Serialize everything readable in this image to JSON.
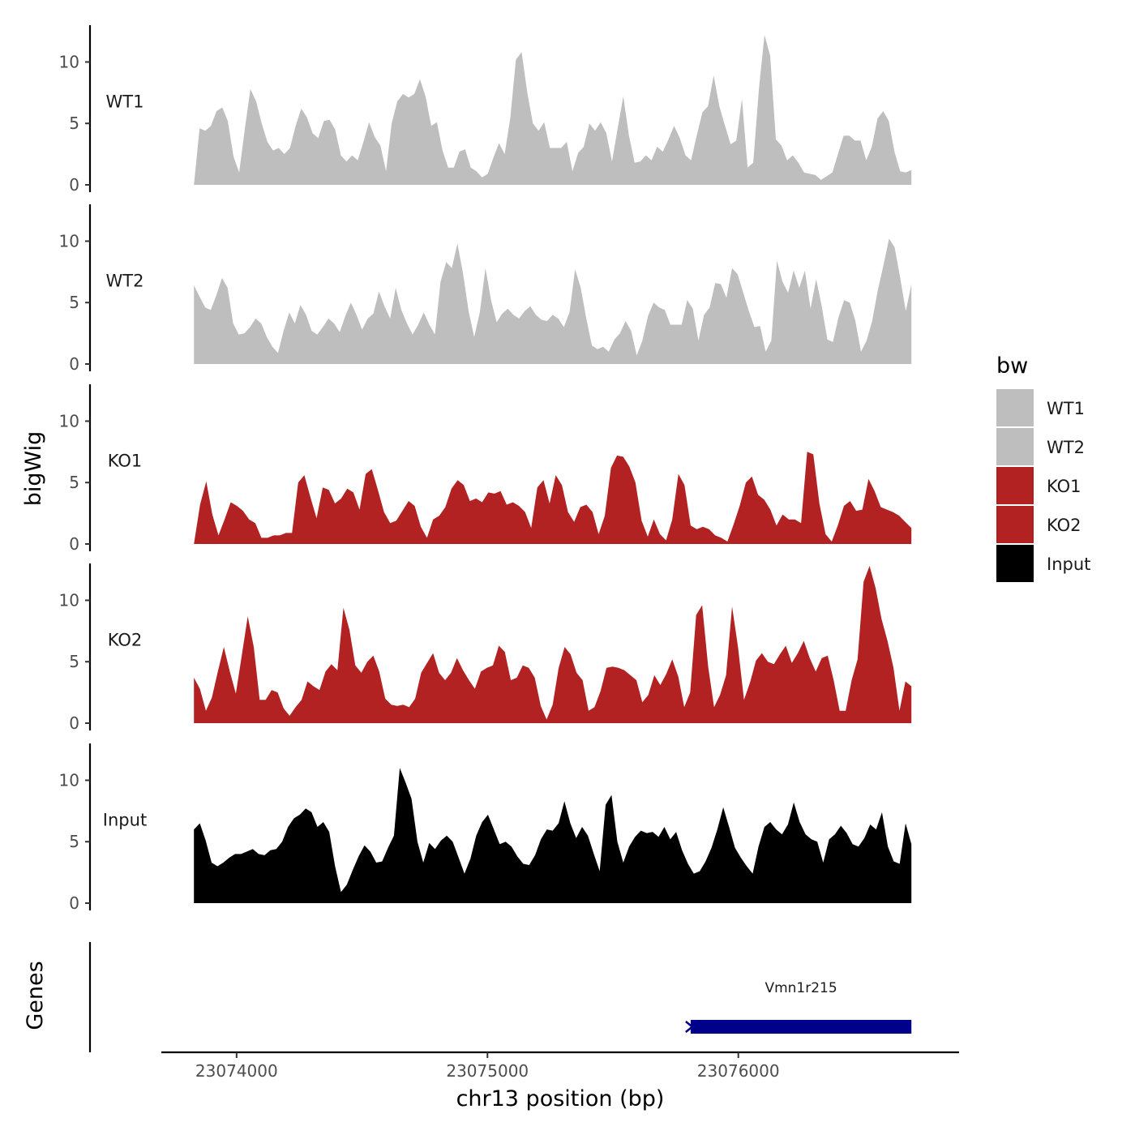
{
  "chart_data": {
    "type": "area",
    "ylabel": "bigWig",
    "xlabel": "chr13 position (bp)",
    "xlim": [
      23073700,
      23076880
    ],
    "x_range_data": [
      23073830,
      23076690
    ],
    "ylim": [
      0,
      13
    ],
    "yticks": [
      0,
      5,
      10
    ],
    "xticks": [
      23074000,
      23075000,
      23076000
    ],
    "xtick_labels": [
      "23074000",
      "23075000",
      "23076000"
    ],
    "legend": {
      "title": "bw",
      "position": "right",
      "entries": [
        {
          "label": "WT1",
          "color": "#bebebe"
        },
        {
          "label": "WT2",
          "color": "#bebebe"
        },
        {
          "label": "KO1",
          "color": "#b22222"
        },
        {
          "label": "KO2",
          "color": "#b22222"
        },
        {
          "label": "Input",
          "color": "#000000"
        }
      ]
    },
    "series": [
      {
        "name": "WT1",
        "color": "#bebebe",
        "values": [
          0,
          4.6,
          4.4,
          4.8,
          6.0,
          6.3,
          5.2,
          2.3,
          1.0,
          4.5,
          7.8,
          6.8,
          5.0,
          3.5,
          2.8,
          3.0,
          2.5,
          3.0,
          4.8,
          6.2,
          5.5,
          4.2,
          3.8,
          5.2,
          5.3,
          4.5,
          2.4,
          1.9,
          2.4,
          2.0,
          3.5,
          5.1,
          3.9,
          3.2,
          1.1,
          5.0,
          6.8,
          7.4,
          7.1,
          7.4,
          8.6,
          7.2,
          4.8,
          5.1,
          2.8,
          1.4,
          1.4,
          2.7,
          2.9,
          1.4,
          1.1,
          0.6,
          0.9,
          2.2,
          3.4,
          2.5,
          5.5,
          10.2,
          10.8,
          7.5,
          5.0,
          4.4,
          5.1,
          3.0,
          3.0,
          3.0,
          3.5,
          1.1,
          2.6,
          3.1,
          5.0,
          4.4,
          5.1,
          4.2,
          1.9,
          4.6,
          7.2,
          4.0,
          1.8,
          1.9,
          2.4,
          2.0,
          3.1,
          2.7,
          3.7,
          4.8,
          3.8,
          2.4,
          2.0,
          4.0,
          5.9,
          6.4,
          8.9,
          6.4,
          4.8,
          3.3,
          3.6,
          7.0,
          1.4,
          1.8,
          7.8,
          12.2,
          10.5,
          3.7,
          3.2,
          2.0,
          2.4,
          1.8,
          1.0,
          0.9,
          0.8,
          0.4,
          0.7,
          1.0,
          2.5,
          4.0,
          4.0,
          3.6,
          3.6,
          2.0,
          3.1,
          5.4,
          6.0,
          5.2,
          2.7,
          1.1,
          1.0,
          1.2
        ]
      },
      {
        "name": "WT2",
        "color": "#bebebe",
        "values": [
          6.4,
          5.5,
          4.6,
          4.4,
          5.6,
          7.0,
          6.2,
          3.3,
          2.4,
          2.5,
          3.0,
          3.7,
          3.3,
          2.2,
          1.4,
          0.9,
          2.7,
          4.2,
          3.3,
          4.8,
          4.0,
          2.7,
          2.4,
          3.0,
          3.7,
          3.3,
          2.6,
          3.9,
          5.0,
          4.0,
          2.8,
          3.7,
          4.1,
          5.9,
          4.7,
          3.7,
          6.2,
          4.4,
          3.3,
          2.4,
          3.2,
          4.2,
          3.2,
          2.4,
          6.7,
          8.3,
          7.8,
          9.8,
          7.4,
          4.3,
          2.2,
          4.2,
          7.8,
          5.2,
          3.4,
          4.1,
          4.5,
          4.0,
          3.7,
          4.3,
          4.7,
          4.0,
          3.6,
          3.5,
          4.0,
          3.7,
          3.0,
          4.2,
          7.7,
          6.2,
          3.7,
          1.5,
          1.2,
          1.4,
          1.0,
          2.0,
          2.5,
          3.5,
          2.7,
          0.7,
          1.9,
          3.9,
          5.0,
          4.6,
          4.4,
          3.2,
          3.2,
          3.2,
          5.2,
          4.5,
          1.9,
          4.0,
          4.6,
          6.6,
          6.5,
          5.4,
          7.8,
          7.3,
          5.8,
          4.3,
          3.0,
          3.1,
          1.0,
          1.9,
          8.4,
          6.7,
          5.8,
          7.6,
          6.2,
          7.6,
          4.5,
          6.9,
          4.7,
          2.0,
          1.8,
          3.8,
          5.2,
          5.0,
          3.5,
          1.0,
          1.9,
          3.5,
          6.0,
          8.0,
          10.2,
          9.5,
          7.0,
          4.3,
          6.5
        ]
      },
      {
        "name": "KO1",
        "color": "#b22222",
        "values": [
          0,
          3.2,
          5.1,
          2.4,
          0.7,
          2.0,
          3.4,
          3.1,
          2.7,
          2.0,
          1.7,
          0.5,
          0.5,
          0.7,
          0.7,
          0.9,
          0.9,
          5.0,
          5.6,
          3.8,
          2.1,
          4.6,
          4.4,
          3.3,
          3.7,
          4.5,
          4.2,
          2.8,
          5.7,
          6.1,
          4.4,
          2.6,
          1.7,
          1.9,
          2.7,
          3.5,
          3.1,
          1.4,
          0.5,
          2.0,
          2.3,
          3.0,
          4.5,
          5.2,
          4.8,
          3.5,
          3.7,
          3.4,
          4.2,
          4.1,
          4.3,
          3.2,
          3.4,
          3.1,
          2.6,
          1.3,
          4.6,
          5.2,
          3.3,
          5.6,
          4.8,
          2.6,
          1.8,
          3.0,
          3.2,
          2.6,
          0.8,
          2.3,
          6.2,
          7.2,
          7.1,
          6.3,
          5.0,
          1.9,
          0.6,
          2.0,
          0.8,
          0.3,
          2.0,
          5.7,
          4.8,
          1.5,
          1.2,
          1.4,
          1.2,
          0.7,
          0.5,
          0.2,
          1.6,
          3.1,
          5.0,
          5.5,
          4.0,
          3.6,
          2.8,
          1.5,
          2.4,
          2.0,
          2.0,
          1.7,
          7.5,
          7.3,
          3.3,
          0.8,
          0.2,
          1.5,
          3.1,
          3.5,
          2.7,
          2.8,
          5.3,
          4.3,
          3.0,
          2.8,
          2.6,
          2.3,
          1.8,
          1.3
        ]
      },
      {
        "name": "KO2",
        "color": "#b22222",
        "values": [
          3.7,
          2.8,
          1.0,
          2.1,
          4.2,
          6.2,
          4.2,
          2.4,
          5.5,
          8.7,
          6.2,
          1.9,
          1.9,
          2.7,
          2.5,
          1.2,
          0.6,
          1.3,
          1.9,
          3.4,
          3.0,
          2.7,
          4.2,
          4.8,
          4.3,
          9.4,
          7.6,
          4.7,
          4.1,
          5.0,
          5.5,
          4.2,
          2.0,
          1.5,
          1.4,
          1.5,
          1.3,
          2.0,
          4.1,
          4.9,
          5.7,
          4.1,
          3.5,
          4.1,
          5.3,
          4.3,
          3.5,
          2.8,
          4.2,
          4.5,
          4.7,
          6.3,
          5.8,
          3.5,
          3.7,
          4.7,
          4.5,
          3.7,
          1.4,
          0.3,
          1.5,
          4.5,
          6.2,
          5.6,
          4.1,
          3.5,
          1.0,
          1.3,
          2.6,
          4.5,
          4.6,
          4.5,
          4.3,
          3.9,
          3.5,
          1.7,
          2.3,
          3.9,
          3.1,
          4.0,
          5.2,
          3.8,
          1.3,
          2.5,
          8.8,
          9.6,
          4.6,
          1.3,
          2.3,
          3.9,
          9.5,
          6.2,
          1.9,
          3.3,
          5.1,
          5.7,
          5.0,
          4.8,
          5.6,
          6.3,
          4.9,
          5.7,
          6.7,
          5.3,
          4.2,
          5.3,
          5.5,
          3.5,
          1.0,
          1.0,
          3.5,
          5.2,
          11.5,
          12.8,
          11.0,
          8.5,
          6.7,
          4.5,
          1.0,
          3.4,
          3.0
        ]
      },
      {
        "name": "Input",
        "color": "#000000",
        "values": [
          6.0,
          6.5,
          5.1,
          3.3,
          3.0,
          3.3,
          3.7,
          4.0,
          4.0,
          4.2,
          4.4,
          4.0,
          3.9,
          4.3,
          4.4,
          5.0,
          6.2,
          6.9,
          7.2,
          7.7,
          7.4,
          6.2,
          6.6,
          5.8,
          3.0,
          0.9,
          1.5,
          2.7,
          3.8,
          4.7,
          4.2,
          3.3,
          3.4,
          4.5,
          5.5,
          11.0,
          9.8,
          8.5,
          5.0,
          3.3,
          4.9,
          4.4,
          5.1,
          5.5,
          5.0,
          3.7,
          2.4,
          3.6,
          5.5,
          6.6,
          7.2,
          6.0,
          4.8,
          5.0,
          4.6,
          3.8,
          3.2,
          3.1,
          3.9,
          5.2,
          6.0,
          5.9,
          6.5,
          8.3,
          6.5,
          5.3,
          6.2,
          5.5,
          4.0,
          2.6,
          8.0,
          8.8,
          5.0,
          3.3,
          4.6,
          5.4,
          5.9,
          5.7,
          5.8,
          5.4,
          6.2,
          5.2,
          5.8,
          4.3,
          3.2,
          2.4,
          2.6,
          3.4,
          4.5,
          6.0,
          7.8,
          6.2,
          4.5,
          3.7,
          3.0,
          2.4,
          4.6,
          6.2,
          6.6,
          6.0,
          5.6,
          6.4,
          8.2,
          6.6,
          5.6,
          5.2,
          5.0,
          3.3,
          5.2,
          5.6,
          6.3,
          5.7,
          4.8,
          4.6,
          5.3,
          6.4,
          6.0,
          7.4,
          4.6,
          3.4,
          3.2,
          6.5,
          4.8
        ]
      }
    ],
    "genes": [
      {
        "name": "Vmn1r215",
        "start": 23075810,
        "end": 23076690,
        "strand": "-",
        "color": "#00008b"
      }
    ],
    "panel_labels": {
      "genes": "Genes"
    }
  }
}
